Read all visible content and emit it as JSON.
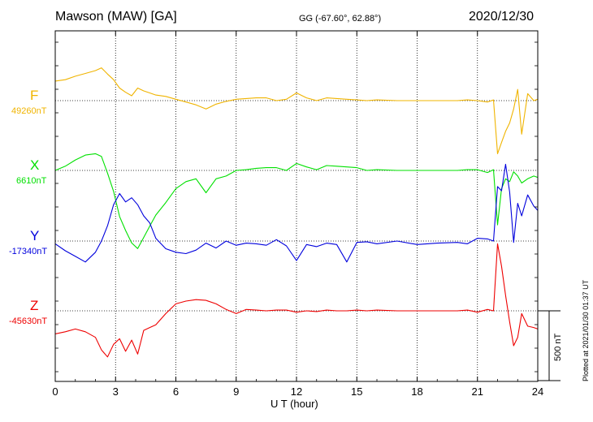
{
  "header": {
    "station": "Mawson (MAW)  [GA]",
    "coords": "GG (-67.60°,  62.88°)",
    "date": "2020/12/30"
  },
  "colors": {
    "F": "#f0b400",
    "X": "#00e000",
    "Y": "#0000dd",
    "Z": "#ee0000",
    "grid": "#000000"
  },
  "plotted_note": "Plotted at 2021/01/30 01:37 UT",
  "chart_data": {
    "type": "line",
    "title": "Mawson (MAW)  [GA]",
    "xlabel": "U T (hour)",
    "xlim": [
      0,
      24
    ],
    "x_ticks": [
      0,
      3,
      6,
      9,
      12,
      15,
      18,
      21,
      24
    ],
    "x_tick_labels": [
      "0",
      "3",
      "6",
      "9",
      "12",
      "15",
      "18",
      "21",
      "24"
    ],
    "scale_bar": {
      "value_nT": 500,
      "label": "500 nT"
    },
    "series": [
      {
        "name": "F",
        "letter": "F",
        "baseline_nT": 49260,
        "baseline_label": "49260nT",
        "x": [
          0,
          0.5,
          1,
          1.5,
          2,
          2.3,
          2.6,
          2.9,
          3.2,
          3.5,
          3.8,
          4.1,
          4.4,
          4.7,
          5,
          5.5,
          6,
          6.5,
          7,
          7.5,
          8,
          8.5,
          9,
          9.5,
          10,
          10.5,
          11,
          11.5,
          12,
          12.5,
          13,
          13.5,
          14,
          14.5,
          15,
          15.5,
          16,
          17,
          18,
          19,
          20,
          20.5,
          21,
          21.5,
          21.8,
          22,
          22.2,
          22.4,
          22.6,
          22.8,
          23,
          23.2,
          23.5,
          23.8,
          24
        ],
        "values": [
          140,
          150,
          175,
          195,
          215,
          235,
          190,
          150,
          90,
          60,
          35,
          90,
          70,
          55,
          40,
          30,
          10,
          -10,
          -30,
          -60,
          -25,
          -5,
          10,
          15,
          20,
          20,
          0,
          10,
          55,
          20,
          0,
          20,
          15,
          10,
          5,
          0,
          5,
          0,
          0,
          0,
          0,
          5,
          0,
          -10,
          5,
          -380,
          -300,
          -220,
          -160,
          -60,
          80,
          -240,
          50,
          0,
          10
        ]
      },
      {
        "name": "X",
        "letter": "X",
        "baseline_nT": 6610,
        "baseline_label": "6610nT",
        "x": [
          0,
          0.5,
          1,
          1.5,
          2,
          2.3,
          2.6,
          2.9,
          3.2,
          3.5,
          3.8,
          4.1,
          4.4,
          4.7,
          5,
          5.5,
          6,
          6.5,
          7,
          7.5,
          8,
          8.5,
          9,
          9.5,
          10,
          10.5,
          11,
          11.5,
          12,
          12.5,
          13,
          13.5,
          14,
          14.5,
          15,
          15.5,
          16,
          17,
          18,
          19,
          20,
          20.5,
          21,
          21.5,
          21.8,
          22,
          22.2,
          22.4,
          22.6,
          22.8,
          23,
          23.2,
          23.5,
          23.8,
          24
        ],
        "values": [
          0,
          30,
          75,
          110,
          120,
          100,
          -20,
          -150,
          -330,
          -430,
          -520,
          -560,
          -480,
          -400,
          -320,
          -230,
          -130,
          -80,
          -60,
          -160,
          -60,
          -40,
          0,
          5,
          15,
          20,
          20,
          0,
          50,
          25,
          5,
          35,
          30,
          25,
          20,
          0,
          5,
          0,
          0,
          0,
          0,
          5,
          5,
          -15,
          5,
          -390,
          -130,
          -60,
          -80,
          -10,
          -40,
          -90,
          -60,
          -40,
          -50
        ]
      },
      {
        "name": "Y",
        "letter": "Y",
        "baseline_nT": -17340,
        "baseline_label": "-17340nT",
        "x": [
          0,
          0.5,
          1,
          1.5,
          2,
          2.3,
          2.6,
          2.9,
          3.2,
          3.5,
          3.8,
          4.1,
          4.4,
          4.7,
          5,
          5.5,
          6,
          6.5,
          7,
          7.5,
          8,
          8.5,
          9,
          9.5,
          10,
          10.5,
          11,
          11.5,
          12,
          12.5,
          13,
          13.5,
          14,
          14.5,
          15,
          15.5,
          16,
          17,
          18,
          19,
          20,
          20.5,
          21,
          21.5,
          21.8,
          22,
          22.2,
          22.4,
          22.6,
          22.8,
          23,
          23.2,
          23.5,
          23.8,
          24
        ],
        "values": [
          -20,
          -70,
          -110,
          -150,
          -80,
          0,
          110,
          260,
          340,
          280,
          310,
          260,
          180,
          130,
          20,
          -55,
          -80,
          -90,
          -65,
          -15,
          -50,
          0,
          -30,
          -15,
          -20,
          -30,
          10,
          -35,
          -140,
          -25,
          -40,
          -15,
          -25,
          -150,
          -10,
          -5,
          -20,
          0,
          -25,
          -15,
          -10,
          -20,
          20,
          15,
          0,
          390,
          360,
          550,
          350,
          -10,
          270,
          180,
          330,
          250,
          220
        ]
      },
      {
        "name": "Z",
        "letter": "Z",
        "baseline_nT": -45630,
        "baseline_label": "-45630nT",
        "x": [
          0,
          0.5,
          1,
          1.5,
          2,
          2.3,
          2.6,
          2.9,
          3.2,
          3.5,
          3.8,
          4.1,
          4.4,
          4.7,
          5,
          5.5,
          6,
          6.5,
          7,
          7.5,
          8,
          8.5,
          9,
          9.5,
          10,
          10.5,
          11,
          11.5,
          12,
          12.5,
          13,
          13.5,
          14,
          14.5,
          15,
          15.5,
          16,
          17,
          18,
          19,
          20,
          20.5,
          21,
          21.5,
          21.8,
          22,
          22.2,
          22.4,
          22.6,
          22.8,
          23,
          23.2,
          23.5,
          23.8,
          24
        ],
        "values": [
          -165,
          -150,
          -130,
          -150,
          -190,
          -280,
          -330,
          -240,
          -200,
          -290,
          -210,
          -310,
          -140,
          -120,
          -100,
          -20,
          50,
          70,
          80,
          75,
          50,
          10,
          -20,
          10,
          5,
          0,
          5,
          5,
          -10,
          0,
          -5,
          5,
          0,
          0,
          5,
          0,
          5,
          0,
          0,
          0,
          0,
          5,
          -10,
          10,
          0,
          480,
          320,
          110,
          -80,
          -250,
          -190,
          -20,
          -110,
          -120,
          -130
        ]
      }
    ]
  }
}
